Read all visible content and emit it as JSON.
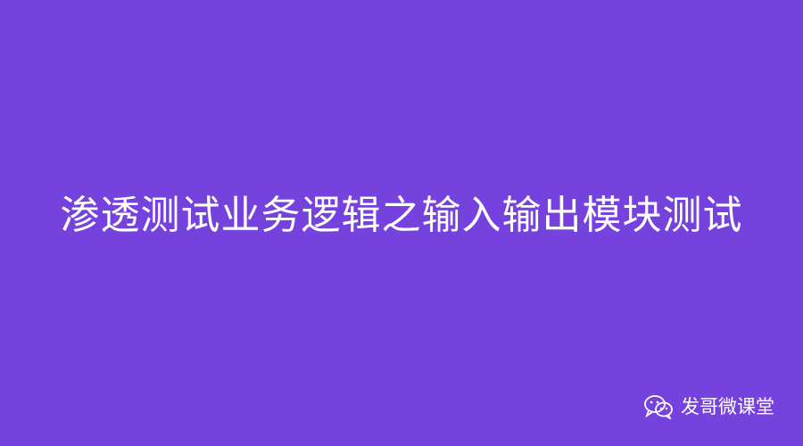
{
  "slide": {
    "background_color": "#7642de",
    "text_color": "#ffffff",
    "title": "渗透测试业务逻辑之输入输出模块测试"
  },
  "watermark": {
    "icon": "wechat-icon",
    "label": "发哥微课堂"
  }
}
